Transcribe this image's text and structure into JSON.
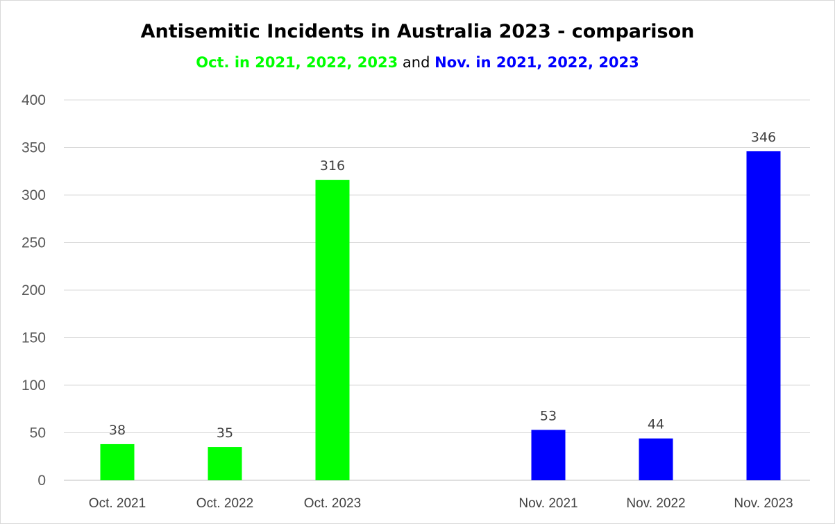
{
  "chart_data": {
    "type": "bar",
    "title": "Antisemitic Incidents in Australia 2023 - comparison",
    "subtitle": {
      "part1": "Oct. in 2021, 2022, 2023",
      "connector": "and",
      "part2": "Nov. in 2021, 2022, 2023"
    },
    "categories": [
      "Oct. 2021",
      "Oct. 2022",
      "Oct. 2023",
      "Nov. 2021",
      "Nov. 2022",
      "Nov. 2023"
    ],
    "values": [
      38,
      35,
      316,
      53,
      44,
      346
    ],
    "bar_colors": [
      "#00ff00",
      "#00ff00",
      "#00ff00",
      "#0000ff",
      "#0000ff",
      "#0000ff"
    ],
    "yticks": [
      0,
      50,
      100,
      150,
      200,
      250,
      300,
      350,
      400
    ],
    "ylim": [
      0,
      400
    ],
    "grid": true,
    "data_labels": true,
    "xlabel": "",
    "ylabel": ""
  }
}
